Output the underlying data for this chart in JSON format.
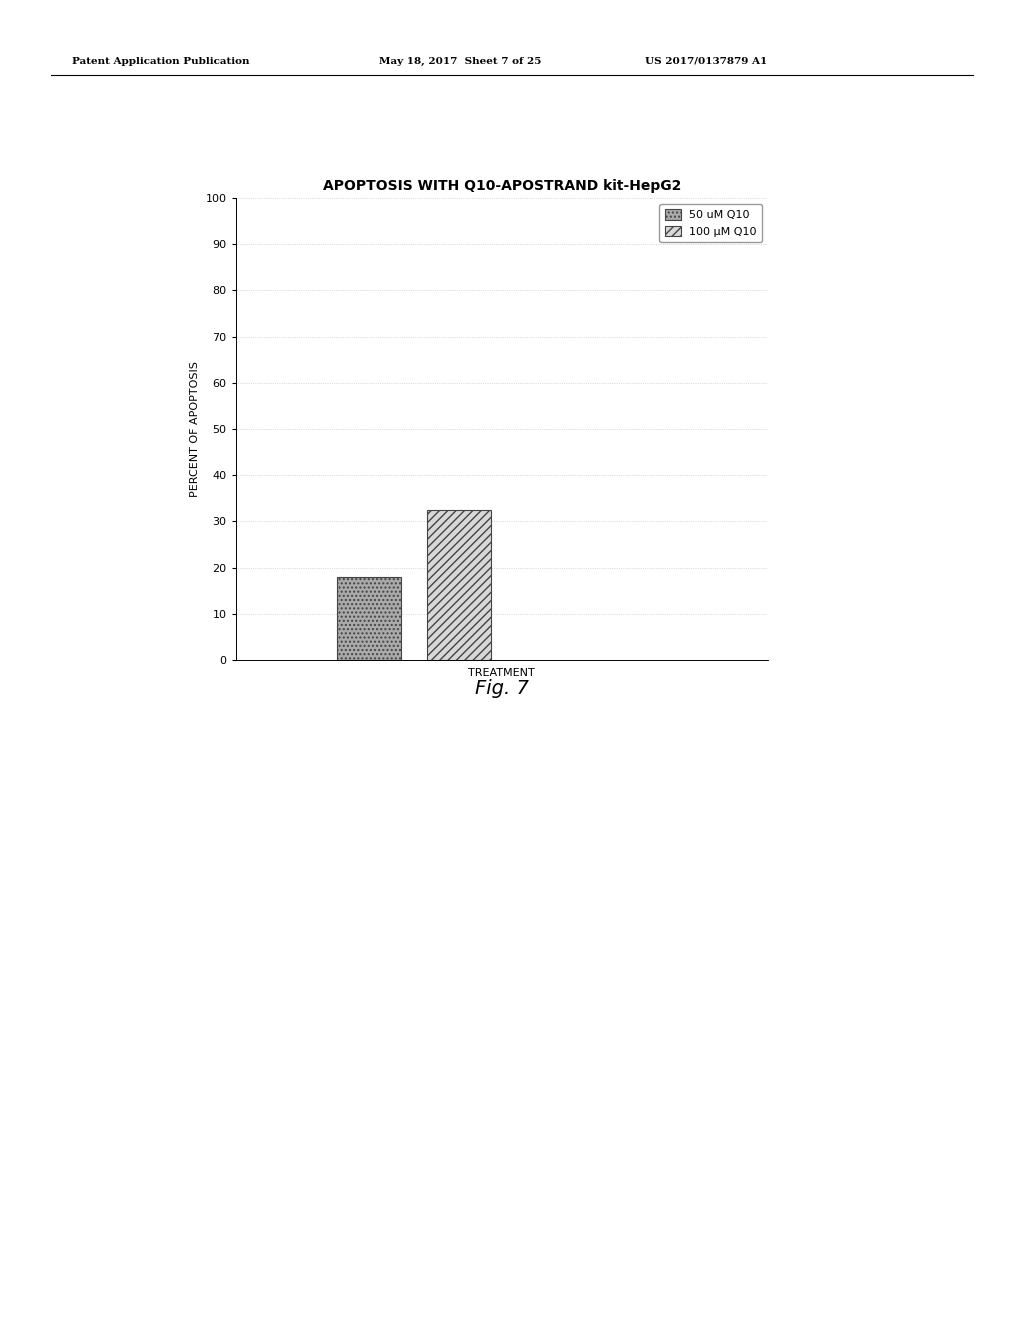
{
  "title": "APOPTOSIS WITH Q10-APOSTRAND kit-HepG2",
  "xlabel": "TREATMENT",
  "ylabel": "PERCENT OF APOPTOSIS",
  "ylim": [
    0,
    100
  ],
  "yticks": [
    0,
    10,
    20,
    30,
    40,
    50,
    60,
    70,
    80,
    90,
    100
  ],
  "bar1_value": 18.0,
  "bar2_value": 32.5,
  "bar1_label": "50 uM Q10",
  "bar2_label": "100 μM Q10",
  "background_color": "#ffffff",
  "title_fontsize": 10,
  "axis_label_fontsize": 8,
  "tick_fontsize": 8,
  "legend_fontsize": 8,
  "header_left": "Patent Application Publication",
  "header_mid": "May 18, 2017  Sheet 7 of 25",
  "header_right": "US 2017/0137879 A1",
  "fig_label": "Fig. 7",
  "header_fontsize": 7.5
}
